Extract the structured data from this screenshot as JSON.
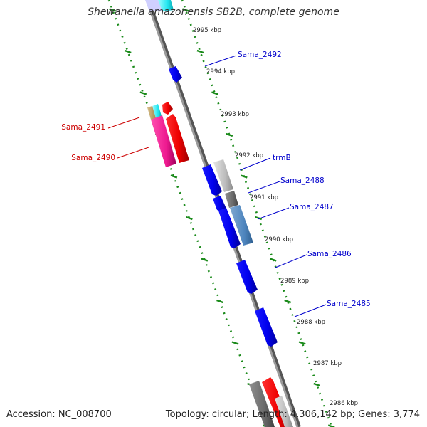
{
  "title": "Shewanella amazonensis SB2B, complete genome",
  "footer": {
    "accession": "Accession: NC_008700",
    "summary": "Topology: circular; Length: 4,306,142 bp; Genes: 3,774"
  },
  "colors": {
    "backbone": "#888888",
    "kbp_ticks": "#1a8a1a",
    "forward_gene": "#0000ee",
    "reverse_gene": "#ee0000",
    "forward_label": "#0000cc",
    "reverse_label": "#cc0000"
  },
  "kbp_marks": [
    "2995 kbp",
    "2994 kbp",
    "2993 kbp",
    "2992 kbp",
    "2991 kbp",
    "2990 kbp",
    "2989 kbp",
    "2988 kbp",
    "2987 kbp",
    "2986 kbp"
  ],
  "gene_labels": [
    {
      "id": "Sama_2492",
      "text": "Sama_2492",
      "strand": "forward"
    },
    {
      "id": "trmB",
      "text": "trmB",
      "strand": "forward"
    },
    {
      "id": "Sama_2488",
      "text": "Sama_2488",
      "strand": "forward"
    },
    {
      "id": "Sama_2487",
      "text": "Sama_2487",
      "strand": "forward"
    },
    {
      "id": "Sama_2486",
      "text": "Sama_2486",
      "strand": "forward"
    },
    {
      "id": "Sama_2485",
      "text": "Sama_2485",
      "strand": "forward"
    },
    {
      "id": "Sama_2491",
      "text": "Sama_2491",
      "strand": "reverse"
    },
    {
      "id": "Sama_2490",
      "text": "Sama_2490",
      "strand": "reverse"
    }
  ]
}
